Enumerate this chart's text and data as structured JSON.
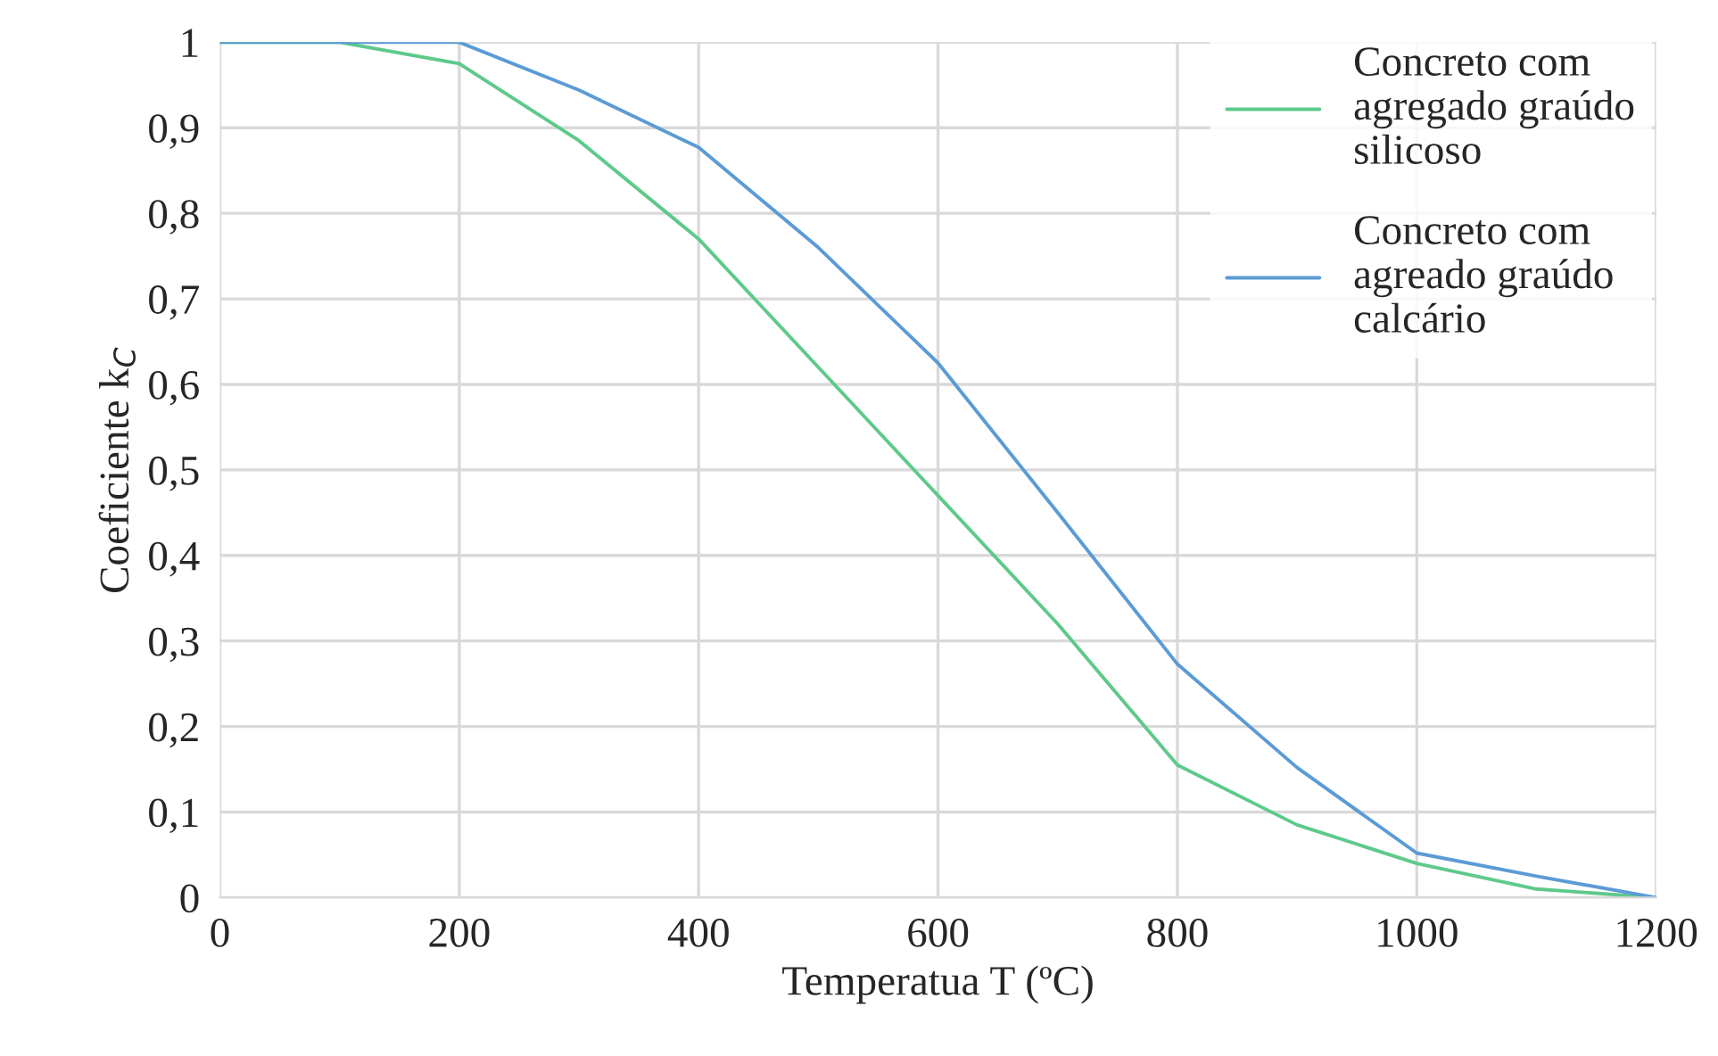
{
  "chart_data": {
    "type": "line",
    "xlabel": "Temperatua T (ºC)",
    "ylabel": "Coeficiente k$_{C}$",
    "x": [
      0,
      100,
      200,
      300,
      400,
      500,
      600,
      700,
      800,
      900,
      1000,
      1100,
      1200
    ],
    "series": [
      {
        "name": "Concreto com\nagregado graúdo\nsilicoso",
        "color": "#5ec98a",
        "values": [
          1,
          1,
          0.975,
          0.885,
          0.77,
          0.62,
          0.47,
          0.32,
          0.155,
          0.085,
          0.04,
          0.01,
          0
        ]
      },
      {
        "name": "Concreto com\nagreado graúdo\ncalcário",
        "color": "#5b9bd5",
        "values": [
          1,
          1,
          1,
          0.944,
          0.877,
          0.76,
          0.625,
          0.45,
          0.273,
          0.152,
          0.052,
          0.025,
          0
        ]
      }
    ],
    "xlim": [
      0,
      1200
    ],
    "xticks": [
      0,
      200,
      400,
      600,
      800,
      1000,
      1200
    ],
    "ylim": [
      0,
      1
    ],
    "yticks": [
      0,
      {
        "value": 0.1,
        "label": "0,1"
      },
      {
        "value": 0.2,
        "label": "0,2"
      },
      {
        "value": 0.3,
        "label": "0,3"
      },
      {
        "value": 0.4,
        "label": "0,4"
      },
      {
        "value": 0.5,
        "label": "0,5"
      },
      {
        "value": 0.6,
        "label": "0,6"
      },
      {
        "value": 0.7,
        "label": "0,7"
      },
      {
        "value": 0.8,
        "label": "0,8"
      },
      {
        "value": 0.9,
        "label": "0,9"
      },
      1
    ],
    "grid": true,
    "legend": "top right",
    "marker": "none",
    "line_style": "solid"
  }
}
